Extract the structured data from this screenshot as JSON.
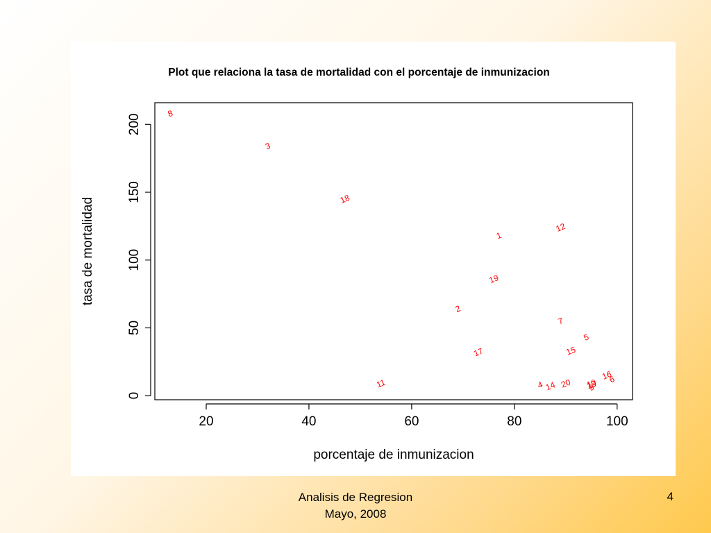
{
  "footer": {
    "line1": "Analisis de Regresion",
    "line2": "Mayo, 2008",
    "page_number": "4"
  },
  "colors": {
    "point_label": "#ff0000",
    "axis": "#000000",
    "panel": "#ffffff"
  },
  "chart_data": {
    "type": "scatter",
    "title": "Plot que relaciona la tasa de mortalidad con el porcentaje de inmunizacion",
    "xlabel": "porcentaje de inmunizacion",
    "ylabel": "tasa de mortalidad",
    "xlim": [
      10,
      103
    ],
    "ylim": [
      -3,
      216
    ],
    "xticks": [
      20,
      40,
      60,
      80,
      100
    ],
    "yticks": [
      0,
      50,
      100,
      150,
      200
    ],
    "grid": false,
    "legend": "none",
    "marker": "point-number-label",
    "points": [
      {
        "label": "1",
        "x": 77,
        "y": 118
      },
      {
        "label": "2",
        "x": 69,
        "y": 64
      },
      {
        "label": "3",
        "x": 32,
        "y": 184
      },
      {
        "label": "4",
        "x": 85,
        "y": 8
      },
      {
        "label": "5",
        "x": 94,
        "y": 43
      },
      {
        "label": "6",
        "x": 99,
        "y": 12
      },
      {
        "label": "7",
        "x": 89,
        "y": 55
      },
      {
        "label": "8",
        "x": 13,
        "y": 208
      },
      {
        "label": "9",
        "x": 95,
        "y": 6
      },
      {
        "label": "10",
        "x": 95,
        "y": 9
      },
      {
        "label": "11",
        "x": 54,
        "y": 9
      },
      {
        "label": "12",
        "x": 89,
        "y": 124
      },
      {
        "label": "13",
        "x": 95,
        "y": 8
      },
      {
        "label": "14",
        "x": 87,
        "y": 7
      },
      {
        "label": "15",
        "x": 91,
        "y": 33
      },
      {
        "label": "16",
        "x": 98,
        "y": 15
      },
      {
        "label": "17",
        "x": 73,
        "y": 32
      },
      {
        "label": "18",
        "x": 47,
        "y": 145
      },
      {
        "label": "19",
        "x": 76,
        "y": 86
      },
      {
        "label": "20",
        "x": 90,
        "y": 9
      }
    ]
  }
}
